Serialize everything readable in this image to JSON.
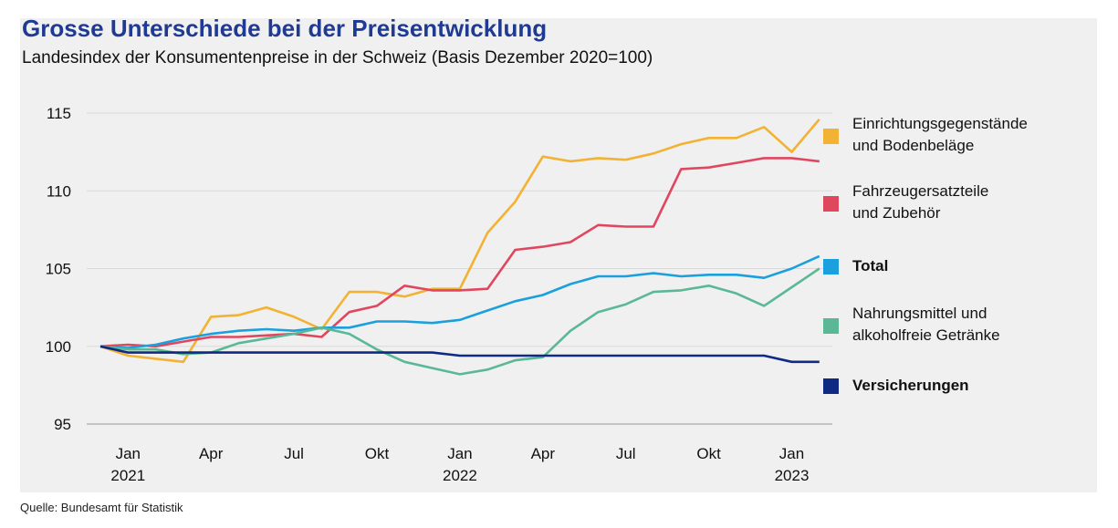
{
  "title": "Grosse Unterschiede bei der Preisentwicklung",
  "subtitle": "Landesindex der Konsumentenpreise in der Schweiz (Basis Dezember 2020=100)",
  "source": "Quelle: Bundesamt für Statistik",
  "legend": [
    {
      "line1": "Einrichtungsgegenstände",
      "line2": "und Bodenbeläge",
      "color": "#f2b233",
      "bold": false
    },
    {
      "line1": "Fahrzeugersatzteile",
      "line2": "und Zubehör",
      "color": "#e0475f",
      "bold": false
    },
    {
      "line1": "Total",
      "line2": "",
      "color": "#1aa0dc",
      "bold": true
    },
    {
      "line1": "Nahrungsmittel und",
      "line2": "alkoholfreie Getränke",
      "color": "#5bb896",
      "bold": false
    },
    {
      "line1": "Versicherungen",
      "line2": "",
      "color": "#102a83",
      "bold": true
    }
  ],
  "chart_data": {
    "type": "line",
    "title": "Grosse Unterschiede bei der Preisentwicklung",
    "subtitle": "Landesindex der Konsumentenpreise in der Schweiz (Basis Dezember 2020=100)",
    "x": [
      "2020-12",
      "2021-01",
      "2021-02",
      "2021-03",
      "2021-04",
      "2021-05",
      "2021-06",
      "2021-07",
      "2021-08",
      "2021-09",
      "2021-10",
      "2021-11",
      "2021-12",
      "2022-01",
      "2022-02",
      "2022-03",
      "2022-04",
      "2022-05",
      "2022-06",
      "2022-07",
      "2022-08",
      "2022-09",
      "2022-10",
      "2022-11",
      "2022-12",
      "2023-01",
      "2023-02"
    ],
    "x_tick_labels": [
      {
        "x": "2021-01",
        "label": "Jan",
        "year": "2021"
      },
      {
        "x": "2021-04",
        "label": "Apr",
        "year": ""
      },
      {
        "x": "2021-07",
        "label": "Jul",
        "year": ""
      },
      {
        "x": "2021-10",
        "label": "Okt",
        "year": ""
      },
      {
        "x": "2022-01",
        "label": "Jan",
        "year": "2022"
      },
      {
        "x": "2022-04",
        "label": "Apr",
        "year": ""
      },
      {
        "x": "2022-07",
        "label": "Jul",
        "year": ""
      },
      {
        "x": "2022-10",
        "label": "Okt",
        "year": ""
      },
      {
        "x": "2023-01",
        "label": "Jan",
        "year": "2023"
      }
    ],
    "ylim": [
      95,
      115
    ],
    "yticks": [
      95,
      100,
      105,
      110,
      115
    ],
    "grid": true,
    "legend_position": "right",
    "series": [
      {
        "name": "Einrichtungsgegenstände und Bodenbeläge",
        "color": "#f2b233",
        "values": [
          100,
          99.4,
          99.2,
          99.0,
          101.9,
          102.0,
          102.5,
          101.9,
          101.1,
          103.5,
          103.5,
          103.2,
          103.7,
          103.7,
          107.3,
          109.3,
          112.2,
          111.9,
          112.1,
          112.0,
          112.4,
          113.0,
          113.4,
          113.4,
          114.1,
          112.5,
          114.6
        ]
      },
      {
        "name": "Fahrzeugersatzteile und Zubehör",
        "color": "#e0475f",
        "values": [
          100,
          100.1,
          100.0,
          100.3,
          100.6,
          100.6,
          100.7,
          100.8,
          100.6,
          102.2,
          102.6,
          103.9,
          103.6,
          103.6,
          103.7,
          106.2,
          106.4,
          106.7,
          107.8,
          107.7,
          107.7,
          111.4,
          111.5,
          111.8,
          112.1,
          112.1,
          111.9
        ]
      },
      {
        "name": "Total",
        "color": "#1aa0dc",
        "values": [
          100,
          99.9,
          100.1,
          100.5,
          100.8,
          101.0,
          101.1,
          101.0,
          101.2,
          101.2,
          101.6,
          101.6,
          101.5,
          101.7,
          102.3,
          102.9,
          103.3,
          104.0,
          104.5,
          104.5,
          104.7,
          104.5,
          104.6,
          104.6,
          104.4,
          105.0,
          105.8
        ]
      },
      {
        "name": "Nahrungsmittel und alkoholfreie Getränke",
        "color": "#5bb896",
        "values": [
          100,
          99.8,
          99.8,
          99.5,
          99.6,
          100.2,
          100.5,
          100.8,
          101.2,
          100.8,
          99.8,
          99.0,
          98.6,
          98.2,
          98.5,
          99.1,
          99.3,
          101.0,
          102.2,
          102.7,
          103.5,
          103.6,
          103.9,
          103.4,
          102.6,
          103.8,
          105.0
        ]
      },
      {
        "name": "Versicherungen",
        "color": "#102a83",
        "values": [
          100,
          99.6,
          99.6,
          99.6,
          99.6,
          99.6,
          99.6,
          99.6,
          99.6,
          99.6,
          99.6,
          99.6,
          99.6,
          99.4,
          99.4,
          99.4,
          99.4,
          99.4,
          99.4,
          99.4,
          99.4,
          99.4,
          99.4,
          99.4,
          99.4,
          99.0,
          99.0
        ]
      }
    ]
  }
}
